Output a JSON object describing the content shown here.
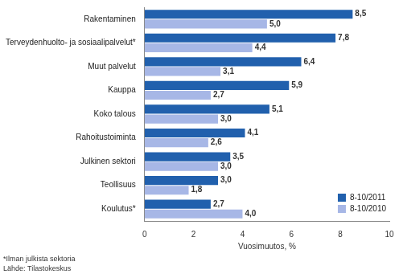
{
  "chart_data": {
    "type": "bar",
    "orientation": "horizontal",
    "categories": [
      "Rakentaminen",
      "Terveydenhuolto- ja sosiaalipalvelut*",
      "Muut palvelut",
      "Kauppa",
      "Koko talous",
      "Rahoitustoiminta",
      "Julkinen sektori",
      "Teollisuus",
      "Koulutus*"
    ],
    "series": [
      {
        "name": "8-10/2011",
        "color": "#2160ad",
        "values": [
          8.5,
          7.8,
          6.4,
          5.9,
          5.1,
          4.1,
          3.5,
          3.0,
          2.7
        ],
        "value_labels": [
          "8,5",
          "7,8",
          "6,4",
          "5,9",
          "5,1",
          "4,1",
          "3,5",
          "3,0",
          "2,7"
        ]
      },
      {
        "name": "8-10/2010",
        "color": "#a7b7e6",
        "values": [
          5.0,
          4.4,
          3.1,
          2.7,
          3.0,
          2.6,
          3.0,
          1.8,
          4.0
        ],
        "value_labels": [
          "5,0",
          "4,4",
          "3,1",
          "2,7",
          "3,0",
          "2,6",
          "3,0",
          "1,8",
          "4,0"
        ]
      }
    ],
    "x_label": "Vuosimuutos, %",
    "xlim": [
      0,
      10
    ],
    "xticks": [
      0,
      2,
      4,
      6,
      8,
      10
    ],
    "grid": false,
    "legend": "lower right",
    "data_labels": true,
    "annotations": [
      "*Ilman julkista sektoria",
      "Lähde: Tilastokeskus"
    ]
  }
}
